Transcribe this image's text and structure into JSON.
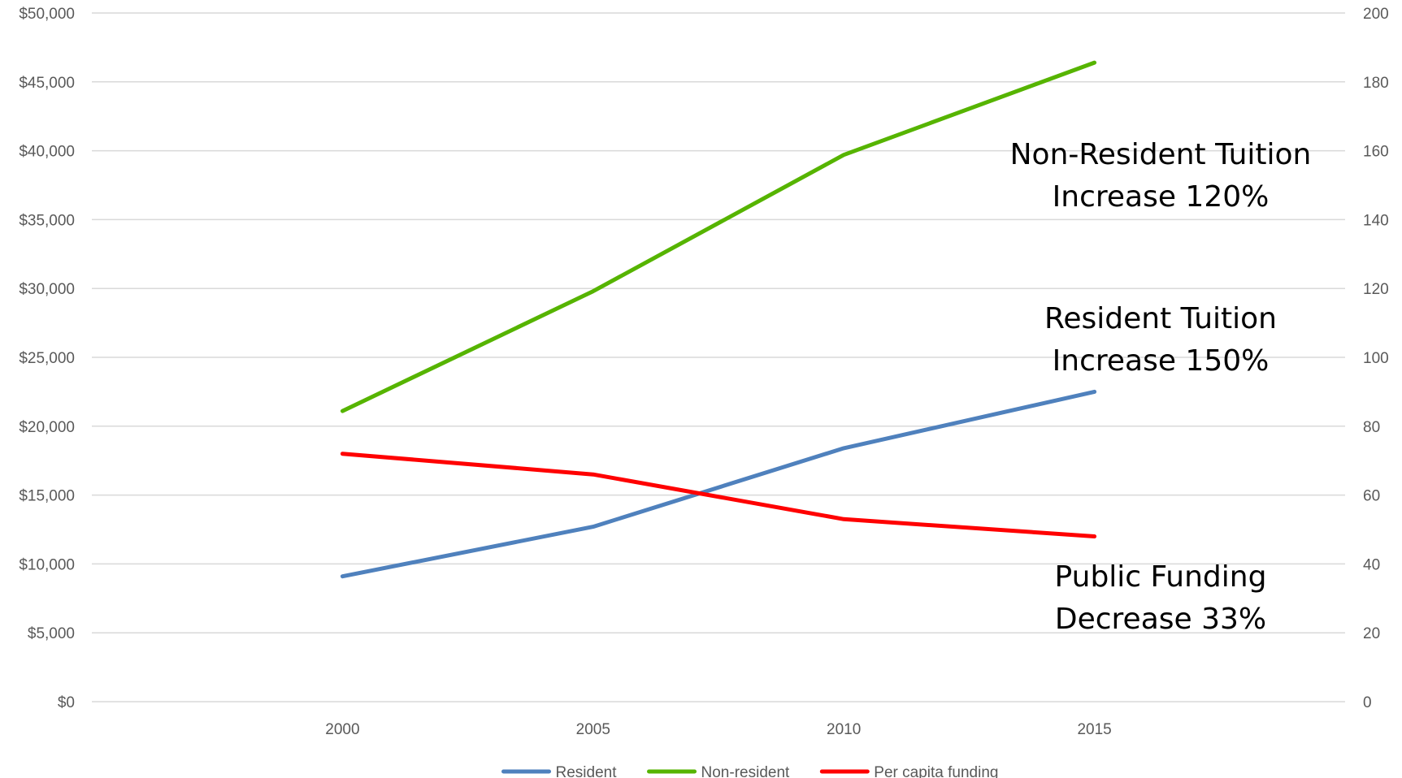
{
  "chart_data": {
    "type": "line",
    "categories": [
      "2000",
      "2005",
      "2010",
      "2015"
    ],
    "y_left": {
      "min": 0,
      "max": 50000,
      "step": 5000,
      "tick_labels": [
        "$0",
        "$5,000",
        "$10,000",
        "$15,000",
        "$20,000",
        "$25,000",
        "$30,000",
        "$35,000",
        "$40,000",
        "$45,000",
        "$50,000"
      ]
    },
    "y_right": {
      "min": 0,
      "max": 200,
      "step": 20,
      "tick_labels": [
        "0",
        "20",
        "40",
        "60",
        "80",
        "100",
        "120",
        "140",
        "160",
        "180",
        "200"
      ]
    },
    "grid": true,
    "legend_position": "bottom",
    "series": [
      {
        "name": "Resident",
        "axis": "left",
        "color": "#4f81bd",
        "values": [
          9100,
          12700,
          18400,
          22500
        ]
      },
      {
        "name": "Non-resident",
        "axis": "left",
        "color": "#56b400",
        "values": [
          21100,
          29800,
          39700,
          46400
        ]
      },
      {
        "name": "Per capita funding",
        "axis": "right",
        "color": "#ff0000",
        "values": [
          72,
          66,
          53,
          48
        ]
      }
    ],
    "annotations": [
      {
        "lines": [
          "Non-Resident Tuition",
          "Increase 120%"
        ]
      },
      {
        "lines": [
          "Resident Tuition",
          "Increase 150%"
        ]
      },
      {
        "lines": [
          "Public Funding",
          "Decrease 33%"
        ]
      }
    ]
  }
}
